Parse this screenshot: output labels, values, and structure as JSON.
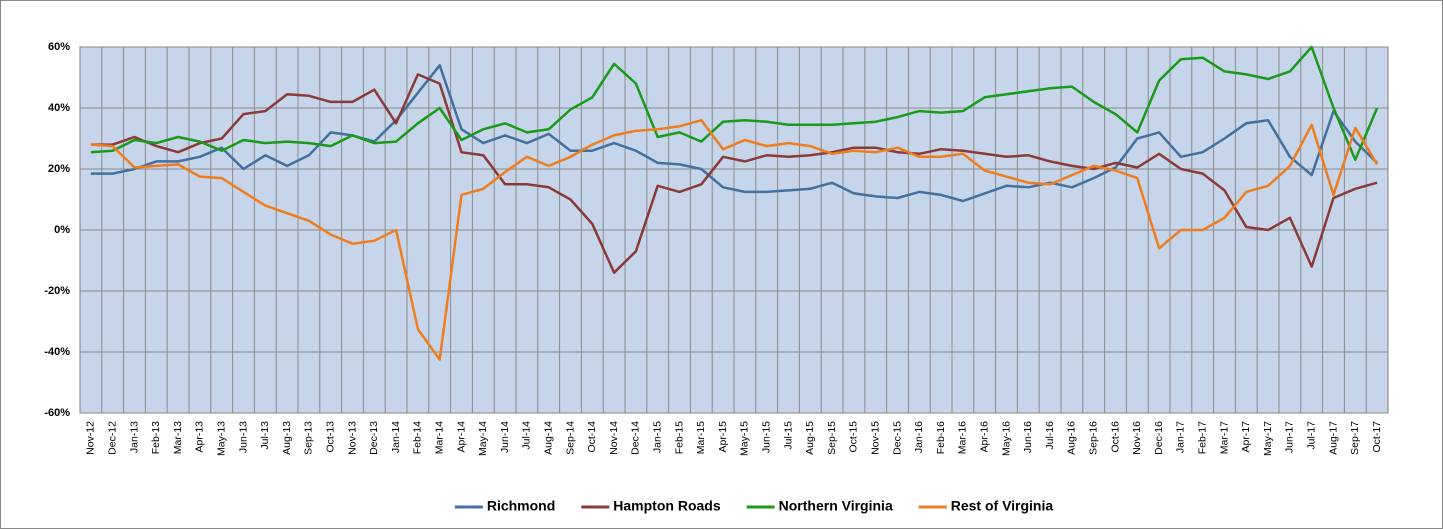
{
  "chart_data": {
    "type": "line",
    "categories": [
      "Nov-12",
      "Dec-12",
      "Jan-13",
      "Feb-13",
      "Mar-13",
      "Apr-13",
      "May-13",
      "Jun-13",
      "Jul-13",
      "Aug-13",
      "Sep-13",
      "Oct-13",
      "Nov-13",
      "Dec-13",
      "Jan-14",
      "Feb-14",
      "Mar-14",
      "Apr-14",
      "May-14",
      "Jun-14",
      "Jul-14",
      "Aug-14",
      "Sep-14",
      "Oct-14",
      "Nov-14",
      "Dec-14",
      "Jan-15",
      "Feb-15",
      "Mar-15",
      "Apr-15",
      "May-15",
      "Jun-15",
      "Jul-15",
      "Aug-15",
      "Sep-15",
      "Oct-15",
      "Nov-15",
      "Dec-15",
      "Jan-16",
      "Feb-16",
      "Mar-16",
      "Apr-16",
      "May-16",
      "Jun-16",
      "Jul-16",
      "Aug-16",
      "Sep-16",
      "Oct-16",
      "Nov-16",
      "Dec-16",
      "Jan-17",
      "Feb-17",
      "Mar-17",
      "Apr-17",
      "May-17",
      "Jun-17",
      "Jul-17",
      "Aug-17",
      "Sep-17",
      "Oct-17"
    ],
    "series": [
      {
        "name": "Richmond",
        "color": "#43709f",
        "values": [
          18.5,
          18.5,
          20,
          22.5,
          22.5,
          24,
          27,
          20,
          24.5,
          21,
          24.5,
          32,
          31,
          29,
          36,
          45,
          54,
          33,
          28.5,
          31,
          28.5,
          31.5,
          26,
          26,
          28.5,
          26,
          22,
          21.5,
          20,
          14,
          12.5,
          12.5,
          13,
          13.5,
          15.5,
          12,
          11,
          10.5,
          12.5,
          11.5,
          9.5,
          12,
          14.5,
          14,
          15.5,
          14,
          17,
          20.5,
          30,
          32,
          24,
          25.5,
          30,
          35,
          36,
          24,
          18,
          39,
          29,
          22
        ]
      },
      {
        "name": "Hampton Roads",
        "color": "#8b3a3a",
        "values": [
          28,
          28,
          30.5,
          27.5,
          25.5,
          28.5,
          30,
          38,
          39,
          44.5,
          44,
          42,
          42,
          46,
          35,
          51,
          48,
          25.5,
          24.5,
          15,
          15,
          14,
          10,
          2,
          -14,
          -7,
          14.5,
          12.5,
          15,
          24,
          22.5,
          24.5,
          24,
          24.5,
          25.5,
          27,
          27,
          25.5,
          25,
          26.5,
          26,
          25,
          24,
          24.5,
          22.5,
          21,
          20,
          22,
          20.5,
          25,
          20,
          18.5,
          13,
          1,
          0,
          4,
          -12,
          10.5,
          13.5,
          15.5
        ]
      },
      {
        "name": "Northern Virginia",
        "color": "#1a9a1a",
        "values": [
          25.5,
          26,
          29.5,
          28.5,
          30.5,
          29,
          26,
          29.5,
          28.5,
          29,
          28.5,
          27.5,
          31,
          28.5,
          29,
          35,
          40,
          29.5,
          33,
          35,
          32,
          33,
          39.5,
          43.5,
          54.5,
          48,
          30.5,
          32,
          29,
          35.5,
          36,
          35.5,
          34.5,
          34.5,
          34.5,
          35,
          35.5,
          37,
          39,
          38.5,
          39,
          43.5,
          44.5,
          45.5,
          46.5,
          47,
          42,
          38,
          32,
          49,
          56,
          56.5,
          52,
          51,
          49.5,
          52,
          60,
          40,
          23,
          40
        ]
      },
      {
        "name": "Rest of Virginia",
        "color": "#ee7d1f",
        "values": [
          28,
          27.5,
          20.5,
          21,
          21.5,
          17.5,
          17,
          12.5,
          8,
          5.5,
          3,
          -1.5,
          -4.5,
          -3.5,
          0,
          -32.5,
          -42.5,
          11.5,
          13.5,
          19,
          24,
          21,
          24,
          28,
          31,
          32.5,
          33,
          34,
          36,
          26.5,
          29.5,
          27.5,
          28.5,
          27.5,
          25,
          26,
          25.5,
          27,
          24,
          24,
          25,
          19.5,
          17.5,
          15.5,
          15,
          18,
          21,
          19.5,
          17,
          -6,
          0,
          0,
          4,
          12.5,
          14.5,
          21,
          34.5,
          11.5,
          33.5,
          21.5
        ]
      }
    ],
    "ylim": [
      -60,
      60
    ],
    "yticks": [
      {
        "value": -60,
        "label": "-60%"
      },
      {
        "value": -40,
        "label": "-40%"
      },
      {
        "value": -20,
        "label": "-20%"
      },
      {
        "value": 0,
        "label": "0%"
      },
      {
        "value": 20,
        "label": "20%"
      },
      {
        "value": 40,
        "label": "40%"
      },
      {
        "value": 60,
        "label": "60%"
      }
    ],
    "grid": true,
    "legend": "bottom"
  }
}
